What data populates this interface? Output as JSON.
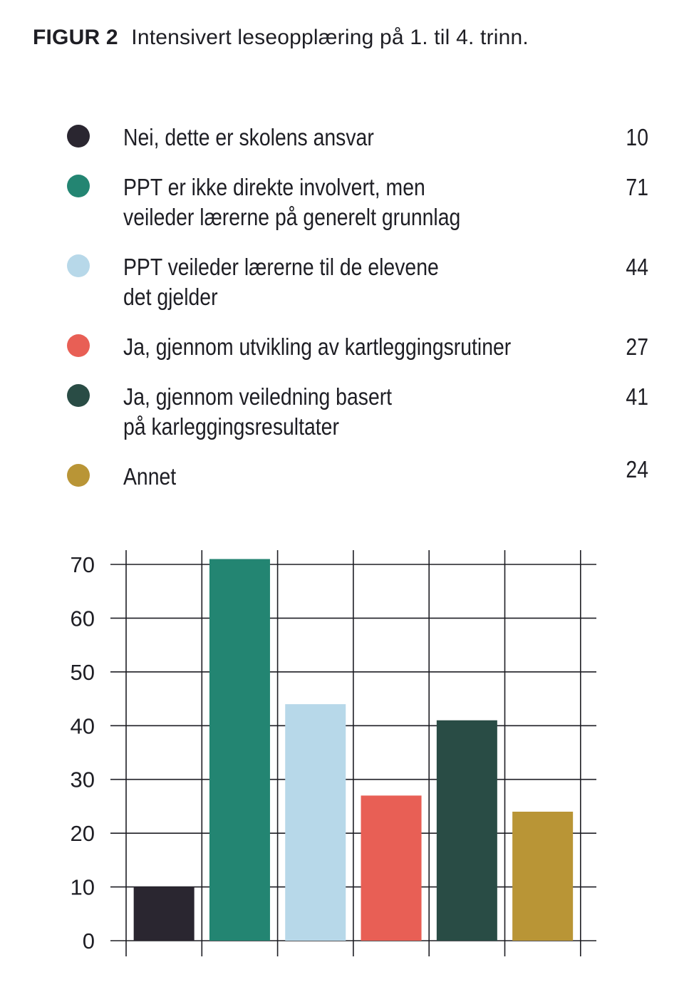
{
  "figure": {
    "label": "FIGUR 2",
    "title": "Intensivert leseopplæring på 1. til 4. trinn."
  },
  "legend": [
    {
      "label": "Nei, dette er skolens ansvar",
      "value": "10",
      "color": "#2a2630"
    },
    {
      "label": "PPT er ikke direkte involvert, men\nveileder lærerne på generelt grunnlag",
      "value": "71",
      "color": "#238572"
    },
    {
      "label": "PPT veileder lærerne til de elevene\ndet gjelder",
      "value": "44",
      "color": "#b7d8e9"
    },
    {
      "label": "Ja, gjennom utvikling av kartleggingsrutiner",
      "value": "27",
      "color": "#e85f55"
    },
    {
      "label": "Ja, gjennom veiledning basert\npå karleggingsresultater",
      "value": "41",
      "color": "#294c45"
    },
    {
      "label": "Annet",
      "value": "24",
      "color": "#b99536"
    }
  ],
  "chart_data": {
    "type": "bar",
    "title": "Intensivert leseopplæring på 1. til 4. trinn.",
    "categories": [
      "Nei, dette er skolens ansvar",
      "PPT er ikke direkte involvert, men veileder lærerne på generelt grunnlag",
      "PPT veileder lærerne til de elevene det gjelder",
      "Ja, gjennom utvikling av kartleggingsrutiner",
      "Ja, gjennom veiledning basert på karleggingsresultater",
      "Annet"
    ],
    "values": [
      10,
      71,
      44,
      27,
      41,
      24
    ],
    "colors": [
      "#2a2630",
      "#238572",
      "#b7d8e9",
      "#e85f55",
      "#294c45",
      "#b99536"
    ],
    "yticks": [
      "0",
      "10",
      "20",
      "30",
      "40",
      "50",
      "60",
      "70"
    ],
    "ylim": [
      0,
      70
    ],
    "grid": true,
    "xlabel": "",
    "ylabel": ""
  }
}
